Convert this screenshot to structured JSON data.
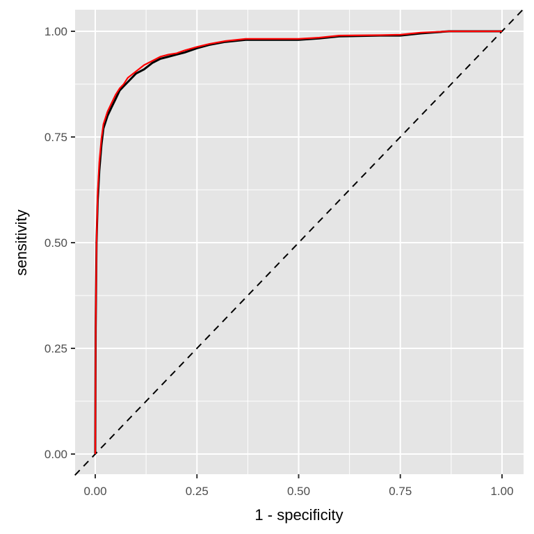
{
  "chart_data": {
    "type": "line",
    "title": "",
    "xlabel": "1 - specificity",
    "ylabel": "sensitivity",
    "xlim": [
      -0.05,
      1.05
    ],
    "ylim": [
      -0.05,
      1.05
    ],
    "x_ticks": [
      "0.00",
      "0.25",
      "0.50",
      "0.75",
      "1.00"
    ],
    "y_ticks": [
      "0.00",
      "0.25",
      "0.50",
      "0.75",
      "1.00"
    ],
    "grid": true,
    "legend": null,
    "reference_line": {
      "from": [
        0,
        0
      ],
      "to": [
        1,
        1
      ],
      "style": "dashed",
      "color": "#000000"
    },
    "series": [
      {
        "name": "curve-black",
        "color": "#000000",
        "x": [
          0,
          0.001,
          0.003,
          0.006,
          0.01,
          0.015,
          0.02,
          0.03,
          0.04,
          0.05,
          0.06,
          0.07,
          0.08,
          0.1,
          0.12,
          0.14,
          0.16,
          0.18,
          0.2,
          0.22,
          0.25,
          0.28,
          0.32,
          0.37,
          0.45,
          0.5,
          0.55,
          0.6,
          0.7,
          0.75,
          0.8,
          0.87,
          1.0
        ],
        "y": [
          0,
          0.3,
          0.5,
          0.6,
          0.67,
          0.73,
          0.77,
          0.8,
          0.82,
          0.84,
          0.86,
          0.87,
          0.88,
          0.9,
          0.91,
          0.925,
          0.935,
          0.94,
          0.945,
          0.95,
          0.96,
          0.968,
          0.975,
          0.98,
          0.98,
          0.98,
          0.983,
          0.988,
          0.99,
          0.99,
          0.995,
          1.0,
          1.0
        ]
      },
      {
        "name": "curve-red",
        "color": "#ff0000",
        "x": [
          0,
          0.001,
          0.003,
          0.006,
          0.01,
          0.015,
          0.02,
          0.03,
          0.04,
          0.05,
          0.06,
          0.07,
          0.08,
          0.1,
          0.12,
          0.14,
          0.16,
          0.18,
          0.2,
          0.22,
          0.25,
          0.28,
          0.32,
          0.37,
          0.45,
          0.5,
          0.55,
          0.6,
          0.7,
          0.75,
          0.8,
          0.87,
          1.0
        ],
        "y": [
          0,
          0.3,
          0.5,
          0.62,
          0.69,
          0.745,
          0.78,
          0.81,
          0.83,
          0.85,
          0.865,
          0.875,
          0.89,
          0.905,
          0.92,
          0.93,
          0.94,
          0.945,
          0.948,
          0.955,
          0.963,
          0.97,
          0.977,
          0.982,
          0.982,
          0.982,
          0.985,
          0.99,
          0.991,
          0.992,
          0.997,
          1.0,
          1.0
        ]
      }
    ]
  }
}
